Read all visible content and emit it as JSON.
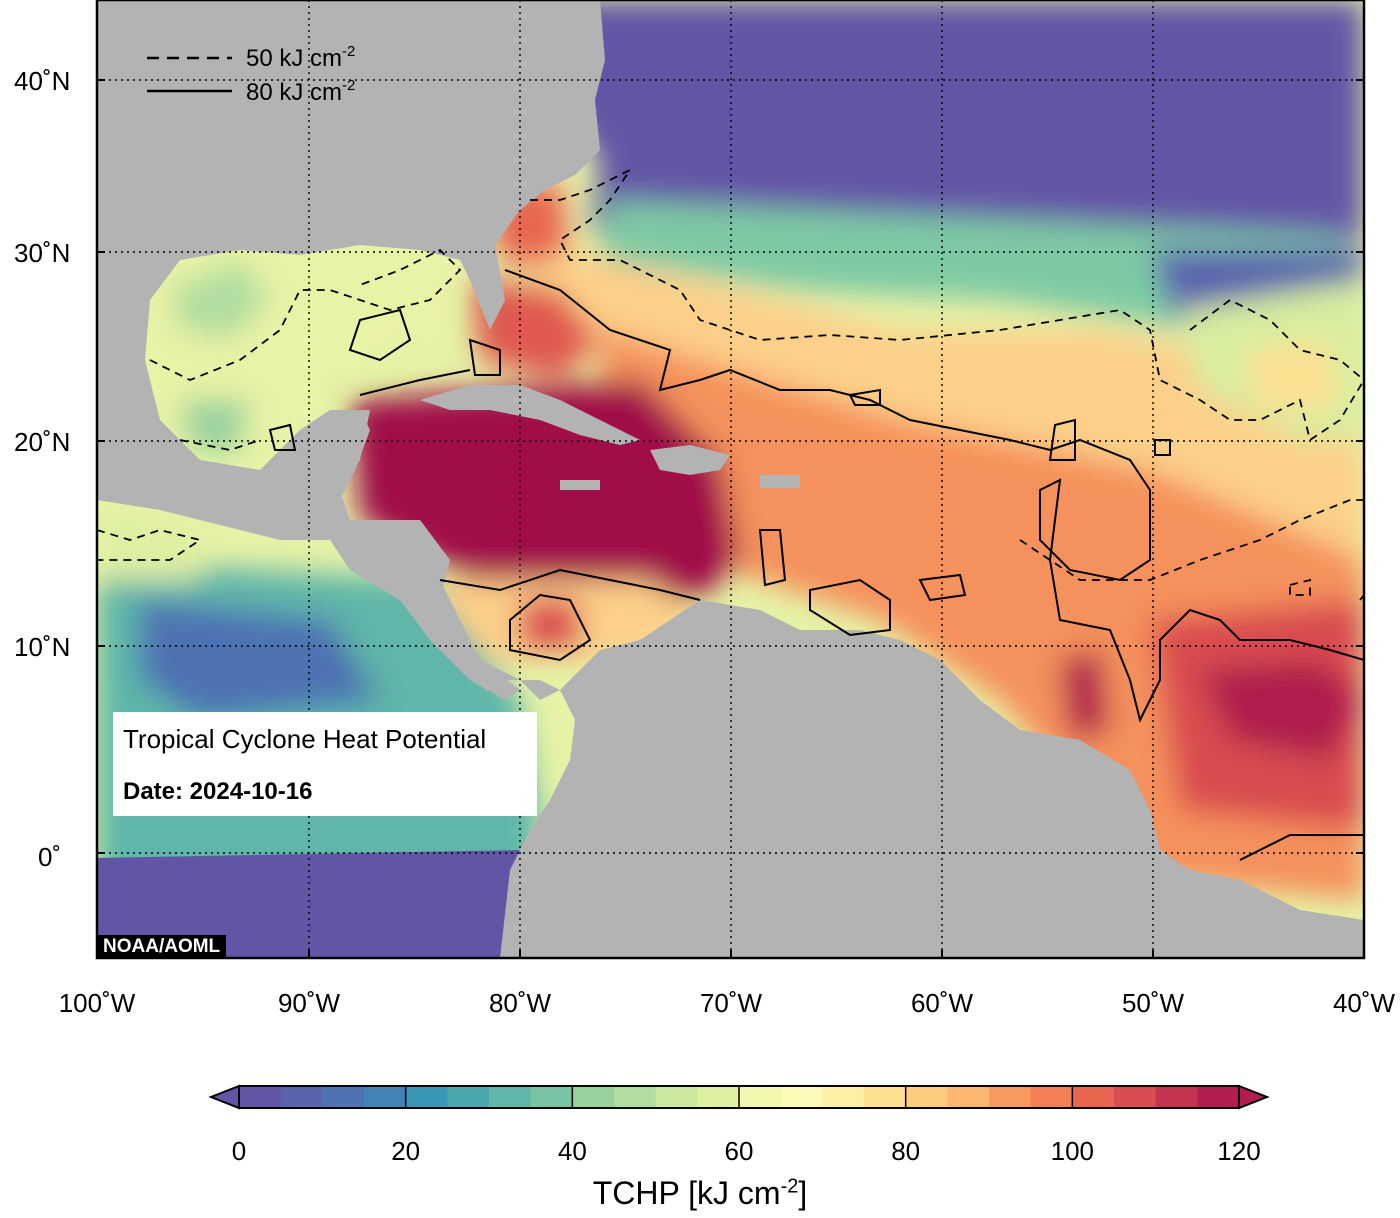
{
  "map": {
    "lat_labels": [
      {
        "value": 40,
        "text": "40˚N"
      },
      {
        "value": 30,
        "text": "30˚N"
      },
      {
        "value": 20,
        "text": "20˚N"
      },
      {
        "value": 10,
        "text": "10˚N"
      },
      {
        "value": 0,
        "text": "0˚"
      }
    ],
    "lon_labels": [
      {
        "value": -100,
        "text": "100˚W"
      },
      {
        "value": -90,
        "text": "90˚W"
      },
      {
        "value": -80,
        "text": "80˚W"
      },
      {
        "value": -70,
        "text": "70˚W"
      },
      {
        "value": -60,
        "text": "60˚W"
      },
      {
        "value": -50,
        "text": "50˚W"
      },
      {
        "value": -40,
        "text": "40˚W"
      }
    ],
    "extent": {
      "lon": [
        -100,
        -40
      ],
      "lat": [
        -5,
        45
      ]
    },
    "legend": {
      "dashed": {
        "value": "50 kJ cm",
        "sup": "-2"
      },
      "solid": {
        "value": "80 kJ cm",
        "sup": "-2"
      }
    },
    "info": {
      "title": "Tropical Cyclone Heat Potential",
      "date": "Date: 2024-10-16"
    },
    "credit": "NOAA/AOML",
    "colors": {
      "land": "#b3b3b3",
      "cold": "#6355a6",
      "warm": "#9e1048"
    }
  },
  "colorbar": {
    "title": "TCHP [kJ cm",
    "title_sup": "-2",
    "title_end": "]",
    "ticks": [
      "0",
      "20",
      "40",
      "60",
      "80",
      "100",
      "120"
    ],
    "range": [
      0,
      120
    ],
    "step": 5,
    "colors": [
      "#6355a6",
      "#5a63ad",
      "#4e72b3",
      "#4384b8",
      "#3b97b5",
      "#4ba6b0",
      "#5fb6a9",
      "#79c4a2",
      "#96d19e",
      "#b1dd9f",
      "#cae8a0",
      "#e0f0a3",
      "#f1f7ac",
      "#fdfbba",
      "#fdefa4",
      "#fde092",
      "#fccd80",
      "#fbb66f",
      "#f89a5f",
      "#f27f55",
      "#e8654f",
      "#d94c4f",
      "#c43350",
      "#b01d4e"
    ]
  }
}
